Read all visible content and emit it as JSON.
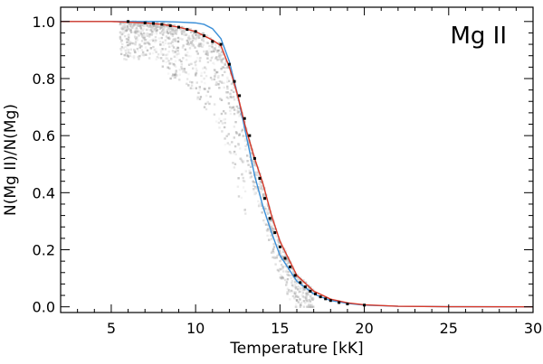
{
  "chart_data": {
    "type": "line",
    "title": "",
    "annotation": "Mg  II",
    "xlabel": "Temperature [kK]",
    "ylabel": "N(Mg  II)/N(Mg)",
    "xlim": [
      2,
      30
    ],
    "ylim": [
      -0.02,
      1.05
    ],
    "x_ticks": [
      5,
      10,
      15,
      20,
      25,
      30
    ],
    "y_ticks": [
      0.0,
      0.2,
      0.4,
      0.6,
      0.8,
      1.0
    ],
    "x_tick_labels": [
      "5",
      "10",
      "15",
      "20",
      "25",
      "30"
    ],
    "y_tick_labels": [
      "0.0",
      "0.2",
      "0.4",
      "0.6",
      "0.8",
      "1.0"
    ],
    "grid": false,
    "colors": {
      "blue_curve": "#3a8fd8",
      "red_curve": "#d83a2a",
      "scatter_density": "#888888",
      "scatter_points": "#000000"
    },
    "series": [
      {
        "style": "blue-line",
        "x": [
          2,
          5,
          7,
          8,
          9,
          10,
          10.5,
          11,
          11.5,
          12,
          12.5,
          13,
          13.5,
          14,
          14.5,
          15,
          16,
          17,
          18,
          19,
          20,
          22,
          25,
          30
        ],
        "y": [
          1.0,
          1.0,
          1.0,
          1.0,
          0.998,
          0.995,
          0.99,
          0.975,
          0.94,
          0.86,
          0.74,
          0.6,
          0.46,
          0.35,
          0.26,
          0.18,
          0.09,
          0.045,
          0.022,
          0.012,
          0.006,
          0.002,
          0.0005,
          0.0
        ]
      },
      {
        "style": "red-line",
        "x": [
          2,
          5,
          7,
          8,
          9,
          10,
          10.5,
          11,
          11.5,
          12,
          12.5,
          13,
          13.5,
          14,
          14.5,
          15,
          16,
          17,
          18,
          19,
          20,
          22,
          25,
          30
        ],
        "y": [
          1.0,
          1.0,
          0.995,
          0.99,
          0.98,
          0.965,
          0.95,
          0.935,
          0.915,
          0.84,
          0.74,
          0.62,
          0.52,
          0.43,
          0.32,
          0.23,
          0.11,
          0.055,
          0.027,
          0.014,
          0.007,
          0.002,
          0.0005,
          0.0
        ]
      },
      {
        "style": "black-points",
        "x": [
          6,
          7,
          7.5,
          8,
          8.5,
          9,
          9.5,
          10,
          10.5,
          11,
          11.5,
          12,
          12.3,
          12.6,
          12.9,
          13.2,
          13.5,
          13.8,
          14.1,
          14.4,
          14.7,
          15,
          15.3,
          15.6,
          15.9,
          16.2,
          16.5,
          16.8,
          17.1,
          17.4,
          17.7,
          18,
          18.5,
          19,
          20
        ],
        "y": [
          1.0,
          0.995,
          0.993,
          0.99,
          0.985,
          0.98,
          0.972,
          0.965,
          0.95,
          0.93,
          0.92,
          0.85,
          0.79,
          0.74,
          0.66,
          0.6,
          0.52,
          0.45,
          0.38,
          0.31,
          0.26,
          0.21,
          0.17,
          0.14,
          0.11,
          0.085,
          0.07,
          0.055,
          0.045,
          0.035,
          0.028,
          0.022,
          0.015,
          0.01,
          0.006
        ]
      }
    ]
  }
}
